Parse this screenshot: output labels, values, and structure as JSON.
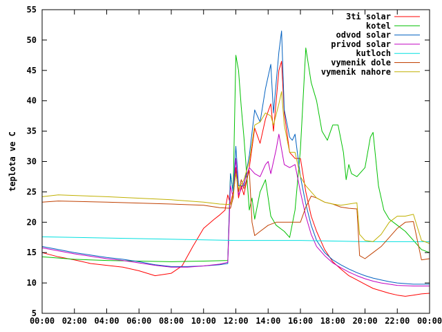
{
  "chart_data": {
    "type": "line",
    "title": "",
    "xlabel": "",
    "ylabel": "teplota ve C",
    "xlim": [
      "00:00",
      "24:00"
    ],
    "ylim": [
      5,
      55
    ],
    "grid": false,
    "legend_position": "top-right",
    "x_ticks": [
      "00:00",
      "02:00",
      "04:00",
      "06:00",
      "08:00",
      "10:00",
      "12:00",
      "14:00",
      "16:00",
      "18:00",
      "20:00",
      "22:00",
      "00:00"
    ],
    "y_ticks": [
      "5",
      "10",
      "15",
      "20",
      "25",
      "30",
      "35",
      "40",
      "45",
      "50",
      "55"
    ],
    "series": [
      {
        "name": "3ti solar",
        "color": "#ff0000",
        "points": [
          [
            "00:00",
            15.0
          ],
          [
            "01:00",
            14.3
          ],
          [
            "02:00",
            13.8
          ],
          [
            "03:00",
            13.2
          ],
          [
            "04:00",
            12.9
          ],
          [
            "05:00",
            12.6
          ],
          [
            "06:00",
            12.0
          ],
          [
            "07:00",
            11.2
          ],
          [
            "08:00",
            11.6
          ],
          [
            "08:40",
            12.8
          ],
          [
            "09:20",
            16.0
          ],
          [
            "10:00",
            19.0
          ],
          [
            "10:40",
            20.5
          ],
          [
            "11:00",
            21.2
          ],
          [
            "11:20",
            22.0
          ],
          [
            "11:30",
            24.5
          ],
          [
            "11:40",
            23.0
          ],
          [
            "11:50",
            25.0
          ],
          [
            "12:00",
            29.0
          ],
          [
            "12:10",
            24.0
          ],
          [
            "12:20",
            26.0
          ],
          [
            "12:30",
            24.5
          ],
          [
            "12:50",
            29.0
          ],
          [
            "13:10",
            35.5
          ],
          [
            "13:30",
            33.0
          ],
          [
            "13:50",
            37.0
          ],
          [
            "14:10",
            39.5
          ],
          [
            "14:20",
            35.0
          ],
          [
            "14:40",
            45.0
          ],
          [
            "14:50",
            46.5
          ],
          [
            "15:00",
            38.0
          ],
          [
            "15:20",
            31.5
          ],
          [
            "15:40",
            30.5
          ],
          [
            "16:00",
            30.5
          ],
          [
            "16:20",
            25.0
          ],
          [
            "16:40",
            21.0
          ],
          [
            "17:00",
            18.5
          ],
          [
            "17:30",
            15.5
          ],
          [
            "18:00",
            13.5
          ],
          [
            "18:30",
            12.3
          ],
          [
            "19:00",
            11.2
          ],
          [
            "19:30",
            10.5
          ],
          [
            "20:00",
            9.8
          ],
          [
            "20:30",
            9.1
          ],
          [
            "21:00",
            8.7
          ],
          [
            "21:30",
            8.3
          ],
          [
            "22:00",
            8.0
          ],
          [
            "22:30",
            7.8
          ],
          [
            "23:00",
            8.0
          ],
          [
            "23:30",
            8.2
          ],
          [
            "24:00",
            8.3
          ]
        ]
      },
      {
        "name": "kotel",
        "color": "#00c000",
        "points": [
          [
            "00:00",
            14.3
          ],
          [
            "02:00",
            13.9
          ],
          [
            "04:00",
            13.7
          ],
          [
            "06:00",
            13.6
          ],
          [
            "08:00",
            13.5
          ],
          [
            "10:00",
            13.6
          ],
          [
            "11:30",
            13.7
          ],
          [
            "11:40",
            28.0
          ],
          [
            "11:50",
            25.0
          ],
          [
            "12:00",
            47.5
          ],
          [
            "12:10",
            45.0
          ],
          [
            "12:20",
            39.0
          ],
          [
            "12:30",
            34.0
          ],
          [
            "12:40",
            28.0
          ],
          [
            "12:50",
            22.0
          ],
          [
            "13:00",
            24.0
          ],
          [
            "13:10",
            20.5
          ],
          [
            "13:30",
            25.0
          ],
          [
            "13:50",
            27.0
          ],
          [
            "14:00",
            24.0
          ],
          [
            "14:10",
            21.0
          ],
          [
            "14:30",
            19.5
          ],
          [
            "15:00",
            18.5
          ],
          [
            "15:20",
            17.5
          ],
          [
            "15:40",
            22.0
          ],
          [
            "16:00",
            32.0
          ],
          [
            "16:20",
            48.7
          ],
          [
            "16:40",
            43.0
          ],
          [
            "17:00",
            40.0
          ],
          [
            "17:20",
            35.0
          ],
          [
            "17:40",
            33.5
          ],
          [
            "18:00",
            36.0
          ],
          [
            "18:20",
            36.0
          ],
          [
            "18:40",
            31.5
          ],
          [
            "18:50",
            27.0
          ],
          [
            "19:00",
            29.5
          ],
          [
            "19:10",
            28.0
          ],
          [
            "19:30",
            27.5
          ],
          [
            "20:00",
            29.0
          ],
          [
            "20:20",
            34.0
          ],
          [
            "20:30",
            34.8
          ],
          [
            "20:50",
            26.0
          ],
          [
            "21:10",
            22.0
          ],
          [
            "21:30",
            20.5
          ],
          [
            "22:00",
            19.5
          ],
          [
            "22:30",
            18.5
          ],
          [
            "23:00",
            17.0
          ],
          [
            "23:30",
            15.5
          ],
          [
            "24:00",
            15.0
          ]
        ]
      },
      {
        "name": "odvod solar",
        "color": "#0060c0",
        "points": [
          [
            "00:00",
            16.0
          ],
          [
            "01:00",
            15.5
          ],
          [
            "02:00",
            15.0
          ],
          [
            "03:00",
            14.6
          ],
          [
            "04:00",
            14.2
          ],
          [
            "05:00",
            13.9
          ],
          [
            "06:00",
            13.5
          ],
          [
            "07:00",
            13.0
          ],
          [
            "08:00",
            12.7
          ],
          [
            "09:00",
            12.7
          ],
          [
            "10:00",
            12.8
          ],
          [
            "11:00",
            13.0
          ],
          [
            "11:30",
            13.2
          ],
          [
            "11:40",
            28.0
          ],
          [
            "11:50",
            25.0
          ],
          [
            "12:00",
            32.5
          ],
          [
            "12:10",
            26.0
          ],
          [
            "12:30",
            26.0
          ],
          [
            "12:50",
            31.0
          ],
          [
            "13:10",
            38.5
          ],
          [
            "13:30",
            36.5
          ],
          [
            "13:50",
            42.0
          ],
          [
            "14:10",
            46.0
          ],
          [
            "14:20",
            38.0
          ],
          [
            "14:40",
            48.0
          ],
          [
            "14:50",
            51.5
          ],
          [
            "15:00",
            38.5
          ],
          [
            "15:20",
            34.0
          ],
          [
            "15:30",
            33.5
          ],
          [
            "15:40",
            34.5
          ],
          [
            "16:00",
            27.5
          ],
          [
            "16:20",
            23.0
          ],
          [
            "16:40",
            19.5
          ],
          [
            "17:00",
            17.0
          ],
          [
            "17:30",
            15.0
          ],
          [
            "18:00",
            13.8
          ],
          [
            "18:30",
            13.0
          ],
          [
            "19:00",
            12.3
          ],
          [
            "19:30",
            11.7
          ],
          [
            "20:00",
            11.2
          ],
          [
            "20:30",
            10.8
          ],
          [
            "21:00",
            10.5
          ],
          [
            "21:30",
            10.2
          ],
          [
            "22:00",
            10.0
          ],
          [
            "23:00",
            9.8
          ],
          [
            "24:00",
            9.8
          ]
        ]
      },
      {
        "name": "privod solar",
        "color": "#c000c0",
        "points": [
          [
            "00:00",
            15.8
          ],
          [
            "01:00",
            15.3
          ],
          [
            "02:00",
            14.8
          ],
          [
            "03:00",
            14.4
          ],
          [
            "04:00",
            14.0
          ],
          [
            "05:00",
            13.7
          ],
          [
            "06:00",
            13.3
          ],
          [
            "07:00",
            12.9
          ],
          [
            "08:00",
            12.6
          ],
          [
            "09:00",
            12.6
          ],
          [
            "10:00",
            12.8
          ],
          [
            "11:00",
            13.1
          ],
          [
            "11:30",
            13.4
          ],
          [
            "11:40",
            26.0
          ],
          [
            "11:50",
            24.0
          ],
          [
            "12:00",
            30.5
          ],
          [
            "12:10",
            24.5
          ],
          [
            "12:30",
            26.5
          ],
          [
            "12:50",
            29.0
          ],
          [
            "13:10",
            28.0
          ],
          [
            "13:30",
            27.5
          ],
          [
            "13:50",
            29.5
          ],
          [
            "14:00",
            30.0
          ],
          [
            "14:10",
            28.0
          ],
          [
            "14:30",
            32.0
          ],
          [
            "14:40",
            34.5
          ],
          [
            "14:50",
            32.0
          ],
          [
            "15:00",
            29.5
          ],
          [
            "15:20",
            29.0
          ],
          [
            "15:40",
            29.5
          ],
          [
            "16:00",
            25.0
          ],
          [
            "16:20",
            21.0
          ],
          [
            "16:40",
            18.0
          ],
          [
            "17:00",
            16.0
          ],
          [
            "17:30",
            14.5
          ],
          [
            "18:00",
            13.3
          ],
          [
            "18:30",
            12.5
          ],
          [
            "19:00",
            11.8
          ],
          [
            "19:30",
            11.2
          ],
          [
            "20:00",
            10.7
          ],
          [
            "20:30",
            10.3
          ],
          [
            "21:00",
            10.0
          ],
          [
            "21:30",
            9.8
          ],
          [
            "22:00",
            9.6
          ],
          [
            "23:00",
            9.5
          ],
          [
            "24:00",
            9.5
          ]
        ]
      },
      {
        "name": "kutloch",
        "color": "#00e0e0",
        "points": [
          [
            "00:00",
            17.6
          ],
          [
            "04:00",
            17.4
          ],
          [
            "08:00",
            17.2
          ],
          [
            "12:00",
            17.0
          ],
          [
            "16:00",
            17.0
          ],
          [
            "20:00",
            16.8
          ],
          [
            "24:00",
            16.8
          ]
        ]
      },
      {
        "name": "vymenik dole",
        "color": "#c04000",
        "points": [
          [
            "00:00",
            23.3
          ],
          [
            "01:00",
            23.5
          ],
          [
            "04:00",
            23.3
          ],
          [
            "08:00",
            23.0
          ],
          [
            "10:00",
            22.8
          ],
          [
            "11:00",
            22.4
          ],
          [
            "11:40",
            22.3
          ],
          [
            "11:50",
            24.0
          ],
          [
            "12:00",
            28.5
          ],
          [
            "12:10",
            25.0
          ],
          [
            "12:20",
            27.0
          ],
          [
            "12:30",
            25.5
          ],
          [
            "12:50",
            28.5
          ],
          [
            "13:00",
            20.0
          ],
          [
            "13:10",
            17.8
          ],
          [
            "13:30",
            18.5
          ],
          [
            "14:00",
            19.5
          ],
          [
            "14:30",
            20.0
          ],
          [
            "15:00",
            20.0
          ],
          [
            "15:30",
            20.0
          ],
          [
            "16:00",
            20.0
          ],
          [
            "16:20",
            22.5
          ],
          [
            "16:40",
            24.3
          ],
          [
            "17:00",
            24.0
          ],
          [
            "17:30",
            23.3
          ],
          [
            "18:00",
            23.0
          ],
          [
            "18:30",
            22.5
          ],
          [
            "19:00",
            22.3
          ],
          [
            "19:30",
            22.2
          ],
          [
            "19:40",
            14.5
          ],
          [
            "20:00",
            14.0
          ],
          [
            "20:30",
            15.0
          ],
          [
            "21:00",
            16.0
          ],
          [
            "21:30",
            17.5
          ],
          [
            "22:00",
            19.0
          ],
          [
            "22:30",
            20.0
          ],
          [
            "23:00",
            20.1
          ],
          [
            "23:30",
            13.8
          ],
          [
            "24:00",
            14.0
          ]
        ]
      },
      {
        "name": "vymenik nahore",
        "color": "#c0b000",
        "points": [
          [
            "00:00",
            24.2
          ],
          [
            "01:00",
            24.5
          ],
          [
            "04:00",
            24.2
          ],
          [
            "08:00",
            23.7
          ],
          [
            "10:00",
            23.3
          ],
          [
            "11:00",
            23.0
          ],
          [
            "11:40",
            22.9
          ],
          [
            "11:50",
            24.5
          ],
          [
            "12:00",
            28.0
          ],
          [
            "12:10",
            25.5
          ],
          [
            "12:30",
            27.0
          ],
          [
            "12:50",
            30.0
          ],
          [
            "13:10",
            36.0
          ],
          [
            "13:30",
            36.5
          ],
          [
            "13:50",
            38.0
          ],
          [
            "14:10",
            37.5
          ],
          [
            "14:20",
            36.0
          ],
          [
            "14:40",
            39.5
          ],
          [
            "14:50",
            41.5
          ],
          [
            "15:00",
            36.0
          ],
          [
            "15:20",
            31.5
          ],
          [
            "15:40",
            31.5
          ],
          [
            "16:00",
            27.5
          ],
          [
            "16:20",
            26.0
          ],
          [
            "16:40",
            25.0
          ],
          [
            "17:00",
            24.0
          ],
          [
            "17:30",
            23.3
          ],
          [
            "18:00",
            23.0
          ],
          [
            "18:30",
            22.8
          ],
          [
            "19:00",
            23.0
          ],
          [
            "19:30",
            23.2
          ],
          [
            "19:40",
            18.0
          ],
          [
            "20:00",
            17.0
          ],
          [
            "20:30",
            16.8
          ],
          [
            "21:00",
            18.0
          ],
          [
            "21:30",
            20.0
          ],
          [
            "22:00",
            21.0
          ],
          [
            "22:30",
            21.0
          ],
          [
            "23:00",
            21.3
          ],
          [
            "23:30",
            17.0
          ],
          [
            "24:00",
            16.5
          ]
        ]
      }
    ]
  }
}
